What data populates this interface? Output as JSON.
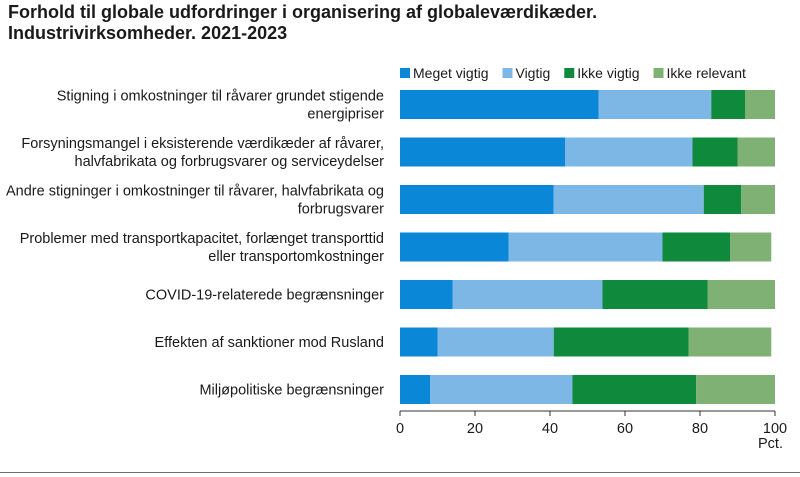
{
  "chart_data": {
    "type": "bar",
    "orientation": "horizontal",
    "stacked": true,
    "title": "Forhold til globale udfordringer i organisering af globaleværdikæder.",
    "subtitle": "Industrivirksomheder. 2021-2023",
    "xlabel": "Pct.",
    "ylabel": "",
    "xlim": [
      0,
      100
    ],
    "xticks": [
      "0",
      "20",
      "40",
      "60",
      "80",
      "100"
    ],
    "grid": false,
    "legend_position": "top-right",
    "categories": [
      [
        "Stigning i omkostninger til råvarer grundet stigende",
        "energipriser"
      ],
      [
        "Forsyningsmangel i eksisterende værdikæder af råvarer,",
        "halvfabrikata og forbrugsvarer og serviceydelser"
      ],
      [
        "Andre stigninger i omkostninger til råvarer, halvfabrikata og",
        "forbrugsvarer"
      ],
      [
        "Problemer med transportkapacitet, forlænget transporttid",
        "eller transportomkostninger"
      ],
      [
        "COVID-19-relaterede begrænsninger"
      ],
      [
        "Effekten af sanktioner mod Rusland"
      ],
      [
        "Miljøpolitiske begrænsninger"
      ]
    ],
    "series": [
      {
        "name": "Meget vigtig",
        "color": "#0a87d6",
        "values": [
          53,
          44,
          41,
          29,
          14,
          10,
          8
        ]
      },
      {
        "name": "Vigtig",
        "color": "#7cb7e6",
        "values": [
          30,
          34,
          40,
          41,
          40,
          31,
          38
        ]
      },
      {
        "name": "Ikke vigtig",
        "color": "#0f8a3c",
        "values": [
          9,
          12,
          10,
          18,
          28,
          36,
          33
        ]
      },
      {
        "name": "Ikke relevant",
        "color": "#7fb074",
        "values": [
          8,
          10,
          9,
          11,
          18,
          22,
          21
        ]
      }
    ]
  }
}
